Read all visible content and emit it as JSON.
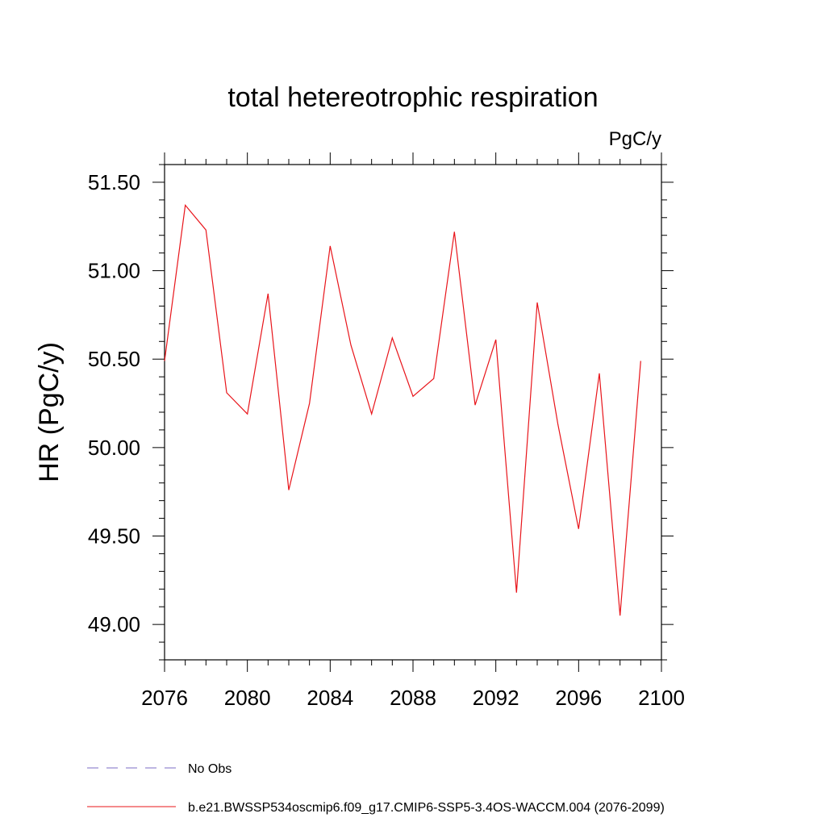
{
  "chart_data": {
    "type": "line",
    "title": "total hetereotrophic respiration",
    "units_label": "PgC/y",
    "ylabel": "HR  (PgC/y)",
    "xlabel": "",
    "xlim": [
      2076,
      2100
    ],
    "ylim": [
      48.8,
      51.6
    ],
    "x_ticks": [
      2076,
      2080,
      2084,
      2088,
      2092,
      2096,
      2100
    ],
    "x_tick_labels": [
      "2076",
      "2080",
      "2084",
      "2088",
      "2092",
      "2096",
      "2100"
    ],
    "y_ticks": [
      49.0,
      49.5,
      50.0,
      50.5,
      51.0,
      51.5
    ],
    "y_tick_labels": [
      "49.00",
      "49.50",
      "50.00",
      "50.50",
      "51.00",
      "51.50"
    ],
    "grid": false,
    "legend_position": "bottom",
    "series": [
      {
        "name": "b.e21.BWSSP534oscmip6.f09_g17.CMIP6-SSP5-3.4OS-WACCM.004 (2076-2099)",
        "color": "#e8141a",
        "dash": "solid",
        "x": [
          2076,
          2077,
          2078,
          2079,
          2080,
          2081,
          2082,
          2083,
          2084,
          2085,
          2086,
          2087,
          2088,
          2089,
          2090,
          2091,
          2092,
          2093,
          2094,
          2095,
          2096,
          2097,
          2098,
          2099
        ],
        "y": [
          50.49,
          51.37,
          51.23,
          50.31,
          50.19,
          50.87,
          49.76,
          50.25,
          51.14,
          50.58,
          50.19,
          50.62,
          50.29,
          50.39,
          51.22,
          50.24,
          50.61,
          49.18,
          50.82,
          50.13,
          49.54,
          50.42,
          49.05,
          50.49
        ]
      }
    ],
    "legend": [
      {
        "label": "No Obs",
        "color": "#7b6cc4",
        "dash": "dashed"
      },
      {
        "label": "b.e21.BWSSP534oscmip6.f09_g17.CMIP6-SSP5-3.4OS-WACCM.004 (2076-2099)",
        "color": "#e8141a",
        "dash": "solid"
      }
    ]
  }
}
